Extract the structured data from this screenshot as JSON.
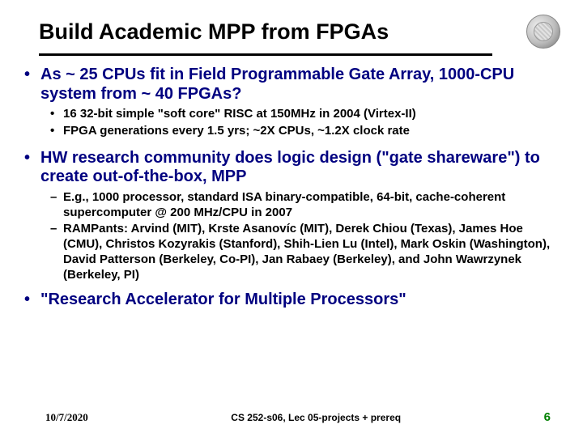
{
  "title": "Build Academic MPP from FPGAs",
  "bullets": {
    "b1": "As ~ 25 CPUs fit in Field Programmable Gate Array, 1000-CPU system from ~ 40 FPGAs?",
    "b1a": "16 32-bit simple \"soft core\" RISC at 150MHz in 2004 (Virtex-II)",
    "b1b": "FPGA generations every 1.5 yrs; ~2X CPUs, ~1.2X clock rate",
    "b2": "HW research community does logic design (\"gate shareware\") to create out-of-the-box, MPP",
    "b2a": "E.g., 1000 processor, standard ISA binary-compatible, 64-bit, cache-coherent supercomputer @ 200 MHz/CPU in 2007",
    "b2b": "RAMPants: Arvind (MIT), Krste Asanovíc (MIT), Derek Chiou (Texas), James Hoe (CMU), Christos Kozyrakis (Stanford), Shih-Lien Lu (Intel), Mark Oskin (Washington), David Patterson (Berkeley, Co-PI), Jan Rabaey (Berkeley), and John Wawrzynek (Berkeley, PI)",
    "b3": "\"Research Accelerator for Multiple Processors\""
  },
  "footer": {
    "date": "10/7/2020",
    "center": "CS 252-s06, Lec 05-projects + prereq",
    "pagenum": "6"
  },
  "colors": {
    "main_bullet": "#000080",
    "sub_bullet": "#000000",
    "pagenum": "#008000",
    "background": "#ffffff",
    "rule": "#000000"
  },
  "typography": {
    "title_fontsize": 27,
    "l1_fontsize": 20,
    "l2_fontsize": 15,
    "footer_fontsize": 12,
    "font_family": "Arial"
  }
}
